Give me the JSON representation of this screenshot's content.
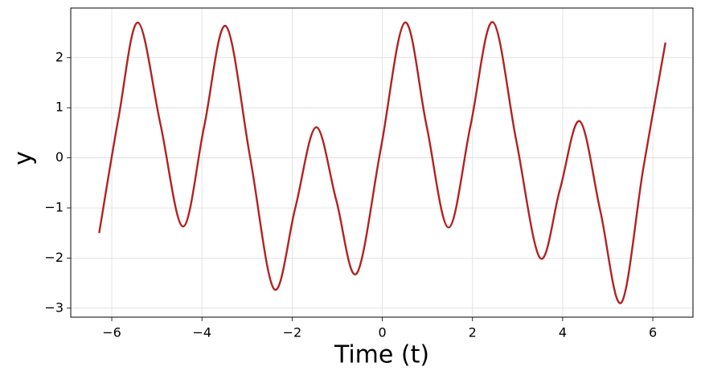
{
  "chart_data": {
    "type": "line",
    "xlabel": "Time (t)",
    "ylabel": "y",
    "x": [
      -6.28,
      -5.85,
      -5.42,
      -4.92,
      -4.42,
      -3.95,
      -3.47,
      -2.93,
      -2.4,
      -1.93,
      -1.47,
      -1.02,
      -0.57,
      -0.03,
      0.5,
      0.98,
      1.47,
      1.96,
      2.45,
      2.97,
      3.5,
      3.94,
      4.38,
      4.84,
      5.3,
      5.79,
      6.28
    ],
    "series": [
      {
        "color": "#b22222",
        "values": [
          -1.5,
          0.8,
          2.7,
          0.67,
          -1.37,
          0.63,
          2.63,
          0.0,
          -2.62,
          -1.0,
          0.61,
          -0.85,
          -2.31,
          0.2,
          2.7,
          0.65,
          -1.39,
          0.66,
          2.71,
          0.35,
          -2.0,
          -0.63,
          0.73,
          -1.08,
          -2.89,
          -0.2,
          2.3
        ]
      }
    ],
    "xlim": [
      -6.91,
      6.89
    ],
    "ylim": [
      -3.18,
      2.99
    ],
    "xticks": [
      {
        "value": -6,
        "label": "−6"
      },
      {
        "value": -4,
        "label": "−4"
      },
      {
        "value": -2,
        "label": "−2"
      },
      0,
      2,
      4,
      6
    ],
    "yticks": [
      {
        "value": -3,
        "label": "−3"
      },
      {
        "value": -2,
        "label": "−2"
      },
      {
        "value": -1,
        "label": "−1"
      },
      0,
      1,
      2
    ],
    "grid": true
  }
}
